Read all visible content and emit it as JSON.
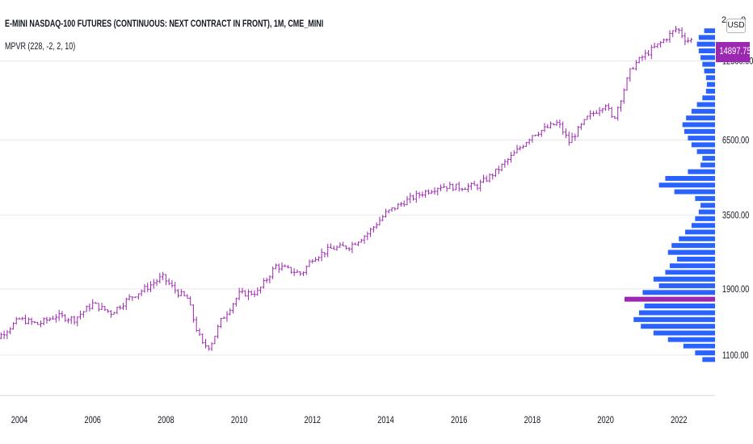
{
  "header": {
    "symbol_title": "E-MINI NASDAQ-100 FUTURES (CONTINUOUS: NEXT CONTRACT IN FRONT), 1M, CME_MINI",
    "indicator_label": "MPVR (228, -2, 2, 10)",
    "currency": "USD",
    "top_partial_left": "2",
    "top_partial_right": "0"
  },
  "last_price": {
    "label": "14897.75",
    "value": 14897.75,
    "color": "#9c27b0"
  },
  "colors": {
    "bars": "#9c27b0",
    "volume_profile": "#2962ff",
    "poc": "#9c27b0",
    "grid": "#e6e8ec",
    "axis_text": "#131722"
  },
  "chart_data": {
    "type": "ohlc",
    "title": "E-MINI NASDAQ-100 FUTURES (CONTINUOUS: NEXT CONTRACT IN FRONT), 1M, CME_MINI",
    "y_scale": "log",
    "ylim": [
      930,
      17500
    ],
    "xlim": [
      2003.0,
      2023.3
    ],
    "y_ticks": [
      "1100.00",
      "1900.00",
      "3500.00",
      "6500.00",
      "12500.00"
    ],
    "x_ticks": [
      "2004",
      "2006",
      "2008",
      "2010",
      "2012",
      "2014",
      "2016",
      "2018",
      "2020",
      "2022"
    ],
    "price_anchors": [
      [
        2003.0,
        1180
      ],
      [
        2003.5,
        1300
      ],
      [
        2004.0,
        1480
      ],
      [
        2004.5,
        1420
      ],
      [
        2005.0,
        1520
      ],
      [
        2005.5,
        1480
      ],
      [
        2006.0,
        1680
      ],
      [
        2006.5,
        1560
      ],
      [
        2007.0,
        1760
      ],
      [
        2007.5,
        1930
      ],
      [
        2007.9,
        2100
      ],
      [
        2008.3,
        1850
      ],
      [
        2008.6,
        1750
      ],
      [
        2008.8,
        1400
      ],
      [
        2009.0,
        1200
      ],
      [
        2009.2,
        1180
      ],
      [
        2009.5,
        1460
      ],
      [
        2010.0,
        1820
      ],
      [
        2010.5,
        1850
      ],
      [
        2011.0,
        2300
      ],
      [
        2011.7,
        2150
      ],
      [
        2012.0,
        2450
      ],
      [
        2012.5,
        2650
      ],
      [
        2013.0,
        2700
      ],
      [
        2013.5,
        3000
      ],
      [
        2014.0,
        3550
      ],
      [
        2014.5,
        3900
      ],
      [
        2015.0,
        4200
      ],
      [
        2015.5,
        4450
      ],
      [
        2016.0,
        4400
      ],
      [
        2016.5,
        4450
      ],
      [
        2017.0,
        5000
      ],
      [
        2017.5,
        5800
      ],
      [
        2018.0,
        6800
      ],
      [
        2018.7,
        7500
      ],
      [
        2019.0,
        6400
      ],
      [
        2019.5,
        7800
      ],
      [
        2020.0,
        8800
      ],
      [
        2020.2,
        7600
      ],
      [
        2020.7,
        11800
      ],
      [
        2021.0,
        12900
      ],
      [
        2021.5,
        14500
      ],
      [
        2021.95,
        16400
      ],
      [
        2022.2,
        14800
      ],
      [
        2022.4,
        14900
      ]
    ],
    "volume_profile": [
      {
        "price": 1060,
        "volume": 0.14
      },
      {
        "price": 1120,
        "volume": 0.22
      },
      {
        "price": 1185,
        "volume": 0.35
      },
      {
        "price": 1250,
        "volume": 0.52
      },
      {
        "price": 1320,
        "volume": 0.68
      },
      {
        "price": 1395,
        "volume": 0.82
      },
      {
        "price": 1475,
        "volume": 0.9
      },
      {
        "price": 1560,
        "volume": 0.84
      },
      {
        "price": 1650,
        "volume": 0.78
      },
      {
        "price": 1745,
        "volume": 1.0,
        "poc": true
      },
      {
        "price": 1845,
        "volume": 0.8
      },
      {
        "price": 1950,
        "volume": 0.62
      },
      {
        "price": 2060,
        "volume": 0.68
      },
      {
        "price": 2180,
        "volume": 0.55
      },
      {
        "price": 2300,
        "volume": 0.5
      },
      {
        "price": 2430,
        "volume": 0.42
      },
      {
        "price": 2570,
        "volume": 0.52
      },
      {
        "price": 2720,
        "volume": 0.48
      },
      {
        "price": 2875,
        "volume": 0.4
      },
      {
        "price": 3040,
        "volume": 0.33
      },
      {
        "price": 3210,
        "volume": 0.26
      },
      {
        "price": 3395,
        "volume": 0.22
      },
      {
        "price": 3590,
        "volume": 0.18
      },
      {
        "price": 3790,
        "volume": 0.16
      },
      {
        "price": 4010,
        "volume": 0.22
      },
      {
        "price": 4240,
        "volume": 0.45
      },
      {
        "price": 4480,
        "volume": 0.62
      },
      {
        "price": 4735,
        "volume": 0.55
      },
      {
        "price": 5005,
        "volume": 0.3
      },
      {
        "price": 5290,
        "volume": 0.16
      },
      {
        "price": 5590,
        "volume": 0.14
      },
      {
        "price": 5910,
        "volume": 0.2
      },
      {
        "price": 6250,
        "volume": 0.26
      },
      {
        "price": 6605,
        "volume": 0.3
      },
      {
        "price": 6980,
        "volume": 0.34
      },
      {
        "price": 7380,
        "volume": 0.36
      },
      {
        "price": 7800,
        "volume": 0.32
      },
      {
        "price": 8245,
        "volume": 0.26
      },
      {
        "price": 8715,
        "volume": 0.2
      },
      {
        "price": 9210,
        "volume": 0.14
      },
      {
        "price": 9735,
        "volume": 0.1
      },
      {
        "price": 10290,
        "volume": 0.09
      },
      {
        "price": 10880,
        "volume": 0.1
      },
      {
        "price": 11500,
        "volume": 0.12
      },
      {
        "price": 12155,
        "volume": 0.14
      },
      {
        "price": 12850,
        "volume": 0.16
      },
      {
        "price": 13580,
        "volume": 0.18
      },
      {
        "price": 14355,
        "volume": 0.2
      },
      {
        "price": 15175,
        "volume": 0.18
      },
      {
        "price": 16040,
        "volume": 0.12
      }
    ]
  }
}
